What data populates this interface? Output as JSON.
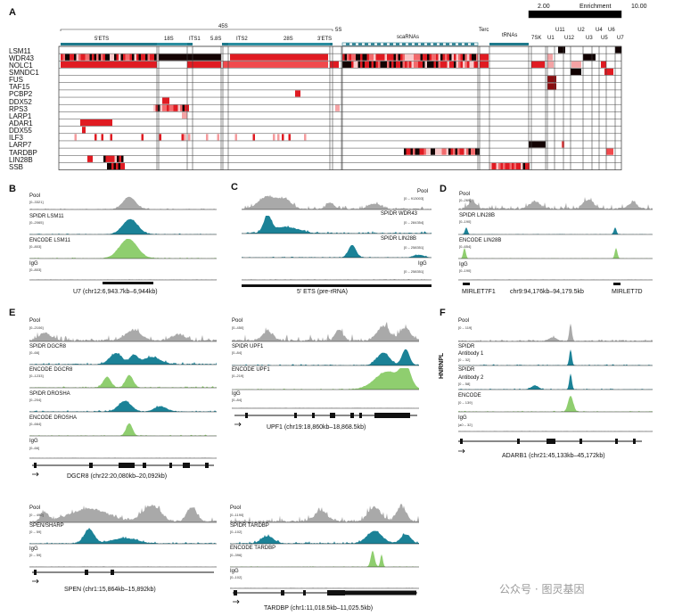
{
  "panel_labels": [
    "A",
    "B",
    "C",
    "D",
    "E",
    "F"
  ],
  "watermark": "公众号 · 图灵基因",
  "panel_a": {
    "scale": {
      "min": "2.00",
      "max": "10.00",
      "title": "Enrichment"
    },
    "top_labels": [
      "45S",
      "5S",
      "Terc"
    ],
    "regions": [
      "5'ETS",
      "18S",
      "ITS1",
      "5.8S",
      "ITS2",
      "28S",
      "3'ETS",
      "scaRNAs",
      "tRNAs",
      "7SK",
      "U1",
      "U11",
      "U12",
      "U2",
      "U3",
      "U4",
      "U5",
      "U6",
      "U7"
    ],
    "rows": [
      "LSM11",
      "WDR43",
      "NOLC1",
      "SMNDC1",
      "FUS",
      "TAF15",
      "PCBP2",
      "DDX52",
      "RPS3",
      "LARP1",
      "ADAR1",
      "DDX55",
      "ILF3",
      "LARP7",
      "TARDBP",
      "LIN28B",
      "SSB"
    ]
  },
  "panel_b": {
    "tracks": [
      {
        "name": "Pool",
        "range": "[0–3321]"
      },
      {
        "name": "SPIDR LSM11",
        "range": "[0–2065]"
      },
      {
        "name": "ENCODE LSM11",
        "range": "[0–803]"
      },
      {
        "name": "IgG",
        "range": "[0–803]"
      }
    ],
    "coordinates": "U7 (chr12:6,943.7kb–6,944kb)"
  },
  "panel_c": {
    "tracks": [
      {
        "name": "Pool",
        "range": "[0 – 913003]"
      },
      {
        "name": "SPIDR WDR43",
        "range": "[0 – 284354]"
      },
      {
        "name": "SPIDR LIN28B",
        "range": "[0 – 258351]"
      },
      {
        "name": "IgG",
        "range": "[0 – 258351]"
      }
    ],
    "coordinates": "5' ETS (pre-rRNA)"
  },
  "panel_d": {
    "tracks": [
      {
        "name": "Pool",
        "range": "[0–269]"
      },
      {
        "name": "SPIDR LIN28B",
        "range": "[0–190]"
      },
      {
        "name": "ENCODE LIN28B",
        "range": "[0–654]"
      },
      {
        "name": "IgG",
        "range": "[0–190]"
      }
    ],
    "genes": [
      "MIRLET7F1",
      "MIRLET7D"
    ],
    "coordinates": "chr9:94,176kb–94,179.5kb"
  },
  "panel_e": {
    "dgcr8": {
      "tracks": [
        {
          "name": "Pool",
          "range": "[0–2106]"
        },
        {
          "name": "SPIDR DGCR8",
          "range": "[0–66]"
        },
        {
          "name": "ENCODE DGCR8",
          "range": "[0–1233]"
        },
        {
          "name": "SPIDR DROSHA",
          "range": "[0–204]"
        },
        {
          "name": "ENCODE DROSHA",
          "range": "[0–664]"
        },
        {
          "name": "IgG",
          "range": "[0–66]"
        }
      ],
      "coordinates": "DGCR8 (chr22:20,080kb–20,092kb)"
    },
    "upf1": {
      "tracks": [
        {
          "name": "Pool",
          "range": "[0–450]"
        },
        {
          "name": "SPIDR UPF1",
          "range": "[0–84]"
        },
        {
          "name": "ENCODE UPF1",
          "range": "[0–219]"
        },
        {
          "name": "IgG",
          "range": "[0–84]"
        }
      ],
      "coordinates": "UPF1 (chr19:18,860kb–18,868.5kb)"
    },
    "spen": {
      "tracks": [
        {
          "name": "Pool",
          "range": "[0 – 490]"
        },
        {
          "name": "SPEN/SHARP",
          "range": "[0 – 59]"
        },
        {
          "name": "IgG",
          "range": "[0 – 59]"
        }
      ],
      "coordinates": "SPEN (chr1:15,864kb–15,892kb)"
    },
    "tardbp": {
      "tracks": [
        {
          "name": "Pool",
          "range": "[0–1190]"
        },
        {
          "name": "SPIDR TARDBP",
          "range": "[0–102]"
        },
        {
          "name": "ENCODE TARDBP",
          "range": "[0–396]"
        },
        {
          "name": "IgG",
          "range": "[0–102]"
        }
      ],
      "coordinates": "TARDBP (chr1:11,018.5kb–11,025.5kb)"
    }
  },
  "panel_f": {
    "protein": "HNRNPL",
    "tracks": [
      {
        "name": "Pool",
        "range": "[0 – 119]"
      },
      {
        "name": "SPIDR",
        "name2": "Antibody 1",
        "range": "[0 – 32]"
      },
      {
        "name": "SPIDR",
        "name2": "Antibody 2",
        "range": "[0 – 58]"
      },
      {
        "name": "ENCODE",
        "range": "[0 – 139]"
      },
      {
        "name": "IgG",
        "range": "[a0 – 32]"
      }
    ],
    "coordinates": "ADARB1 (chr21:45,133kb–45,172kb)"
  },
  "colors": {
    "pool": "#a9a9a9",
    "spidr": "#1b8297",
    "encode": "#8fce6f",
    "heat_red": "#d7191c",
    "heat_dark": "#150505",
    "black": "#111111"
  }
}
